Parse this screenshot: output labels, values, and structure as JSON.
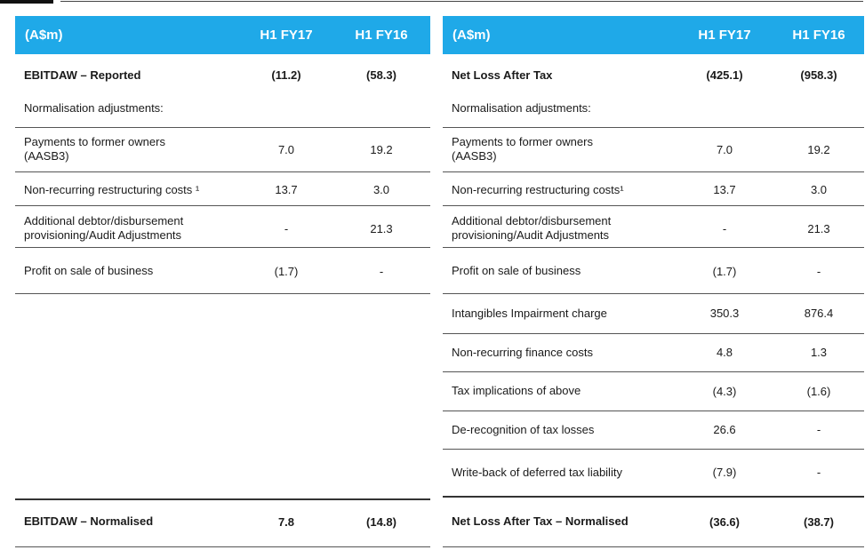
{
  "left_table": {
    "headers": [
      "(A$m)",
      "H1 FY17",
      "H1 FY16"
    ],
    "rows": [
      {
        "label": "EBITDAW – Reported",
        "h1fy17": "(11.2)",
        "h1fy16": "(58.3)"
      },
      {
        "label": "Normalisation adjustments:",
        "h1fy17": "",
        "h1fy16": ""
      },
      {
        "label": "Payments to former owners\n(AASB3)",
        "h1fy17": "7.0",
        "h1fy16": "19.2"
      },
      {
        "label": "Non-recurring restructuring costs ¹",
        "h1fy17": "13.7",
        "h1fy16": "3.0"
      },
      {
        "label": "Additional debtor/disbursement\nprovisioning/Audit Adjustments",
        "h1fy17": "-",
        "h1fy16": "21.3"
      },
      {
        "label": "Profit on sale of business",
        "h1fy17": "(1.7)",
        "h1fy16": "-"
      },
      {
        "label": "EBITDAW – Normalised",
        "h1fy17": "7.8",
        "h1fy16": "(14.8)"
      }
    ]
  },
  "right_table": {
    "headers": [
      "(A$m)",
      "H1 FY17",
      "H1 FY16"
    ],
    "rows": [
      {
        "label": "Net  Loss After Tax",
        "h1fy17": "(425.1)",
        "h1fy16": "(958.3)"
      },
      {
        "label": "Normalisation adjustments:",
        "h1fy17": "",
        "h1fy16": ""
      },
      {
        "label": "Payments to former owners\n(AASB3)",
        "h1fy17": "7.0",
        "h1fy16": "19.2"
      },
      {
        "label": "Non-recurring restructuring costs¹",
        "h1fy17": "13.7",
        "h1fy16": "3.0"
      },
      {
        "label": "Additional debtor/disbursement\nprovisioning/Audit Adjustments",
        "h1fy17": "-",
        "h1fy16": "21.3"
      },
      {
        "label": "Profit on sale of business",
        "h1fy17": "(1.7)",
        "h1fy16": "-"
      },
      {
        "label": "Intangibles Impairment charge",
        "h1fy17": "350.3",
        "h1fy16": "876.4"
      },
      {
        "label": "Non-recurring finance costs",
        "h1fy17": "4.8",
        "h1fy16": "1.3"
      },
      {
        "label": "Tax implications of above",
        "h1fy17": "(4.3)",
        "h1fy16": "(1.6)"
      },
      {
        "label": "De-recognition of tax losses",
        "h1fy17": "26.6",
        "h1fy16": "-"
      },
      {
        "label": "Write-back of deferred tax liability",
        "h1fy17": "(7.9)",
        "h1fy16": "-"
      },
      {
        "label": "Net  Loss After Tax – Normalised",
        "h1fy17": "(36.6)",
        "h1fy16": "(38.7)"
      }
    ]
  },
  "colors": {
    "header_bg": "#1fa9e8",
    "header_text": "#ffffff",
    "rule": "#555555"
  }
}
